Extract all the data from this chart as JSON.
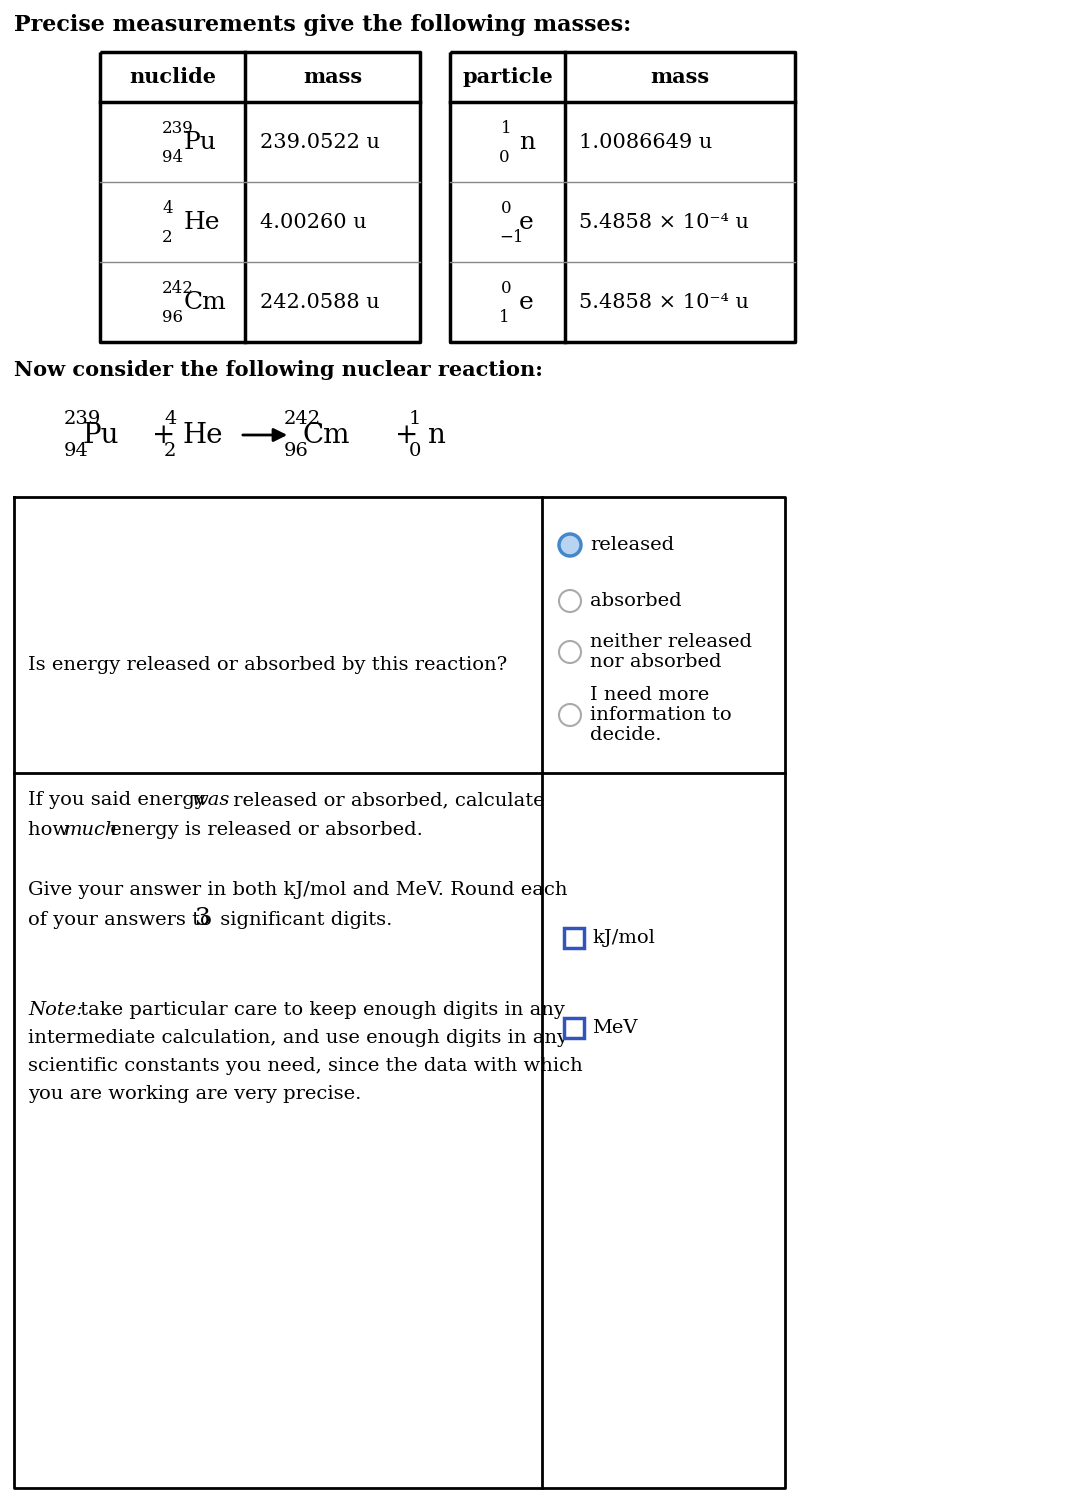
{
  "title": "Precise measurements give the following masses:",
  "bg_color": "#ffffff",
  "text_color": "#000000",
  "table1_rows": [
    {
      "sup": "239",
      "sub": "94",
      "sym": "Pu",
      "mass": "239.0522 u"
    },
    {
      "sup": "4",
      "sub": "2",
      "sym": "He",
      "mass": "4.00260 u"
    },
    {
      "sup": "242",
      "sub": "96",
      "sym": "Cm",
      "mass": "242.0588 u"
    }
  ],
  "table2_rows": [
    {
      "sup": "1",
      "sub": "0",
      "sym": "n",
      "mass": "1.0086649 u"
    },
    {
      "sup": "0",
      "sub": "−1",
      "sym": "e",
      "mass": "5.4858 × 10⁻⁴ u"
    },
    {
      "sup": "0",
      "sub": "1",
      "sym": "e",
      "mass": "5.4858 × 10⁻⁴ u"
    }
  ],
  "reaction_label": "Now consider the following nuclear reaction:",
  "question1": "Is energy released or absorbed by this reaction?",
  "options": [
    "released",
    "absorbed",
    "neither released\nnor absorbed",
    "I need more\ninformation to\ndecide."
  ],
  "border_color": "#000000",
  "radio_selected_fill": "#b8d4f0",
  "radio_selected_edge": "#4488cc",
  "radio_unselected_edge": "#aaaaaa",
  "input_box_color": "#3355bb",
  "input_labels": [
    "kJ/mol",
    "MeV"
  ],
  "font_main": "DejaVu Serif",
  "font_size_title": 16,
  "font_size_header": 15,
  "font_size_cell": 15,
  "font_size_sym": 18,
  "font_size_script": 12,
  "font_size_eq": 20,
  "font_size_eq_script": 14,
  "font_size_body": 14
}
